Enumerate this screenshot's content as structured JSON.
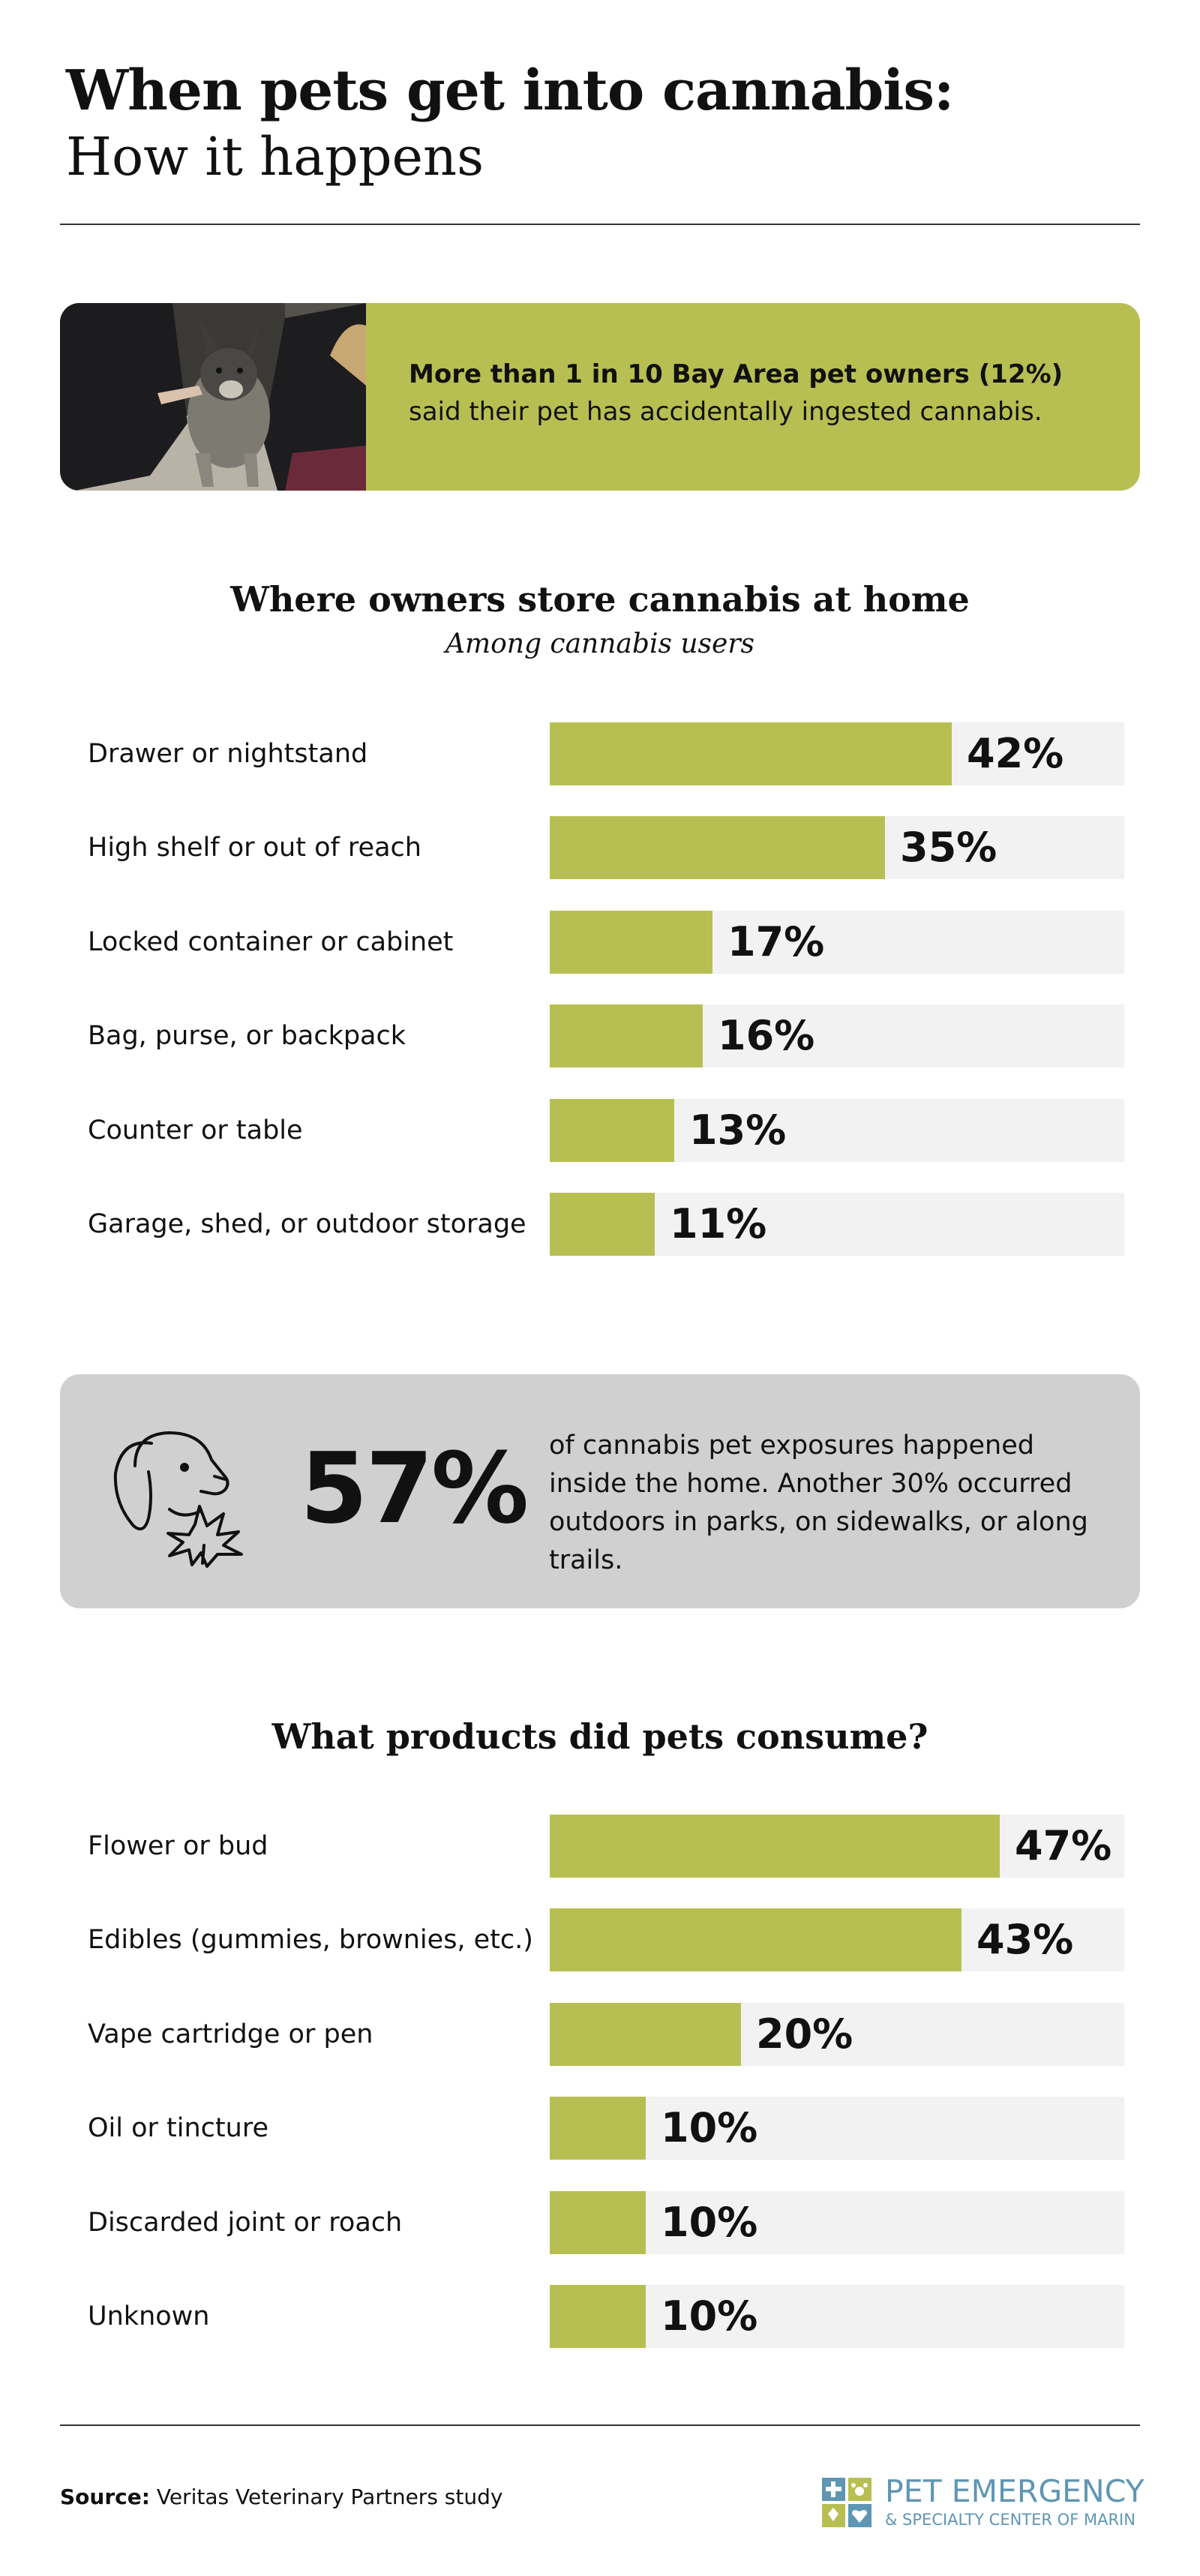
{
  "header": {
    "title_line1": "When pets get into cannabis:",
    "title_line2": "How it happens"
  },
  "callout": {
    "bold_text": "More than 1 in 10 Bay Area pet owners (12%)",
    "text": "said their pet has accidentally ingested cannabis."
  },
  "storage": {
    "title": "Where owners store cannabis at home",
    "subtitle": "Among cannabis users"
  },
  "stat": {
    "number": "57%",
    "text": "of cannabis pet exposures happened inside the home. Another 30% occurred outdoors in parks, on sidewalks, or along trails."
  },
  "products": {
    "title": "What products did pets consume?"
  },
  "footer": {
    "source_label": "Source:",
    "source_text": "Veritas Veterinary Partners study",
    "logo_line1": "PET EMERGENCY",
    "logo_line2": "& SPECIALTY CENTER OF MARIN"
  },
  "colors": {
    "accent": "#b8bf52",
    "track": "#f2f2f3",
    "stat_box": "#d0d0d0",
    "logo_blue": "#5f96b3"
  },
  "chart_data": [
    {
      "type": "bar",
      "orientation": "horizontal",
      "title": "Where owners store cannabis at home",
      "subtitle": "Among cannabis users",
      "categories": [
        "Drawer or nightstand",
        "High shelf or out of reach",
        "Locked container or cabinet",
        "Bag, purse, or backpack",
        "Counter or table",
        "Garage, shed, or outdoor storage"
      ],
      "values": [
        42,
        35,
        17,
        16,
        13,
        11
      ],
      "labels": [
        "42%",
        "35%",
        "17%",
        "16%",
        "13%",
        "11%"
      ],
      "xlim": [
        0,
        60
      ],
      "unit": "%"
    },
    {
      "type": "bar",
      "orientation": "horizontal",
      "title": "What products did pets consume?",
      "categories": [
        "Flower or bud",
        "Edibles (gummies, brownies, etc.)",
        "Vape cartridge or pen",
        "Oil or tincture",
        "Discarded joint or roach",
        "Unknown"
      ],
      "values": [
        47,
        43,
        20,
        10,
        10,
        10
      ],
      "labels": [
        "47%",
        "43%",
        "20%",
        "10%",
        "10%",
        "10%"
      ],
      "xlim": [
        0,
        60
      ],
      "unit": "%"
    }
  ]
}
